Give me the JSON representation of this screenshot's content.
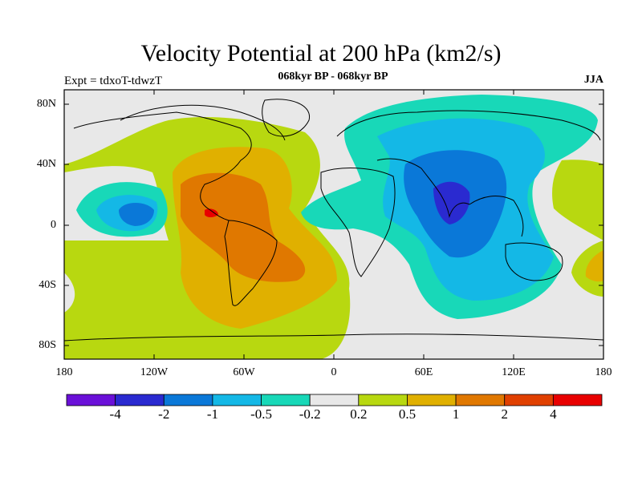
{
  "title": "Velocity Potential at 200 hPa (km2/s)",
  "subtitle": "068kyr BP - 068kyr BP",
  "left_label": "Expt = tdxoT-tdwzT",
  "right_label": "JJA",
  "lat_labels": [
    "80N",
    "40N",
    "0",
    "40S",
    "80S"
  ],
  "lon_labels": [
    "180",
    "120W",
    "60W",
    "0",
    "60E",
    "120E",
    "180"
  ],
  "colorbar": {
    "labels": [
      "-4",
      "-2",
      "-1",
      "-0.5",
      "-0.2",
      "0.2",
      "0.5",
      "1",
      "2",
      "4"
    ],
    "colors": [
      "#6a10d8",
      "#2a2ad0",
      "#0a78d8",
      "#14b8e6",
      "#18d8b8",
      "#e8e8e8",
      "#b8d810",
      "#e0b000",
      "#e07800",
      "#e04000",
      "#e80000"
    ]
  },
  "map_colors": {
    "neg_strong": "#2a2ad0",
    "neg_mid": "#0a78d8",
    "neg_weak": "#14b8e6",
    "neg_faint": "#18d8b8",
    "neutral": "#e8e8e8",
    "pos_faint": "#b8d810",
    "pos_weak": "#e0b000",
    "pos_mid": "#e07800",
    "pos_strong": "#e04000",
    "pos_max": "#e80000"
  }
}
